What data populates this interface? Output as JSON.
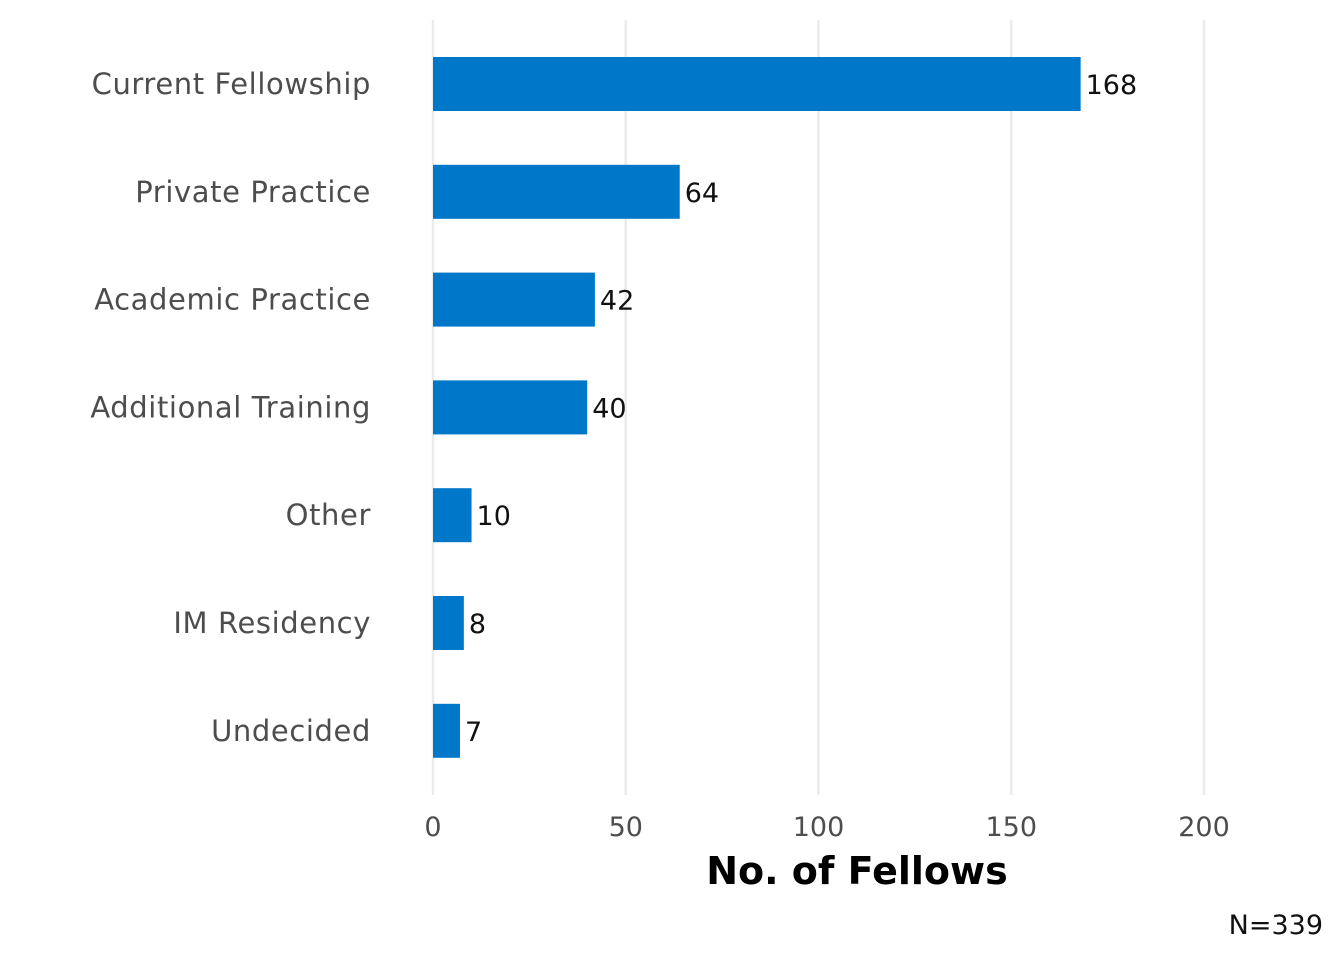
{
  "chart_data": {
    "type": "bar",
    "orientation": "horizontal",
    "categories": [
      "Current Fellowship",
      "Private Practice",
      "Academic Practice",
      "Additional Training",
      "Other",
      "IM Residency",
      "Undecided"
    ],
    "values": [
      168,
      64,
      42,
      40,
      10,
      8,
      7
    ],
    "xlabel": "No. of Fellows",
    "ylabel": "",
    "title": "",
    "xlim": [
      0,
      200
    ],
    "xticks": [
      0,
      50,
      100,
      150,
      200
    ],
    "grid": "vertical-major",
    "bar_color": "#0077C8",
    "grid_color": "#EBEBEB",
    "note": "N=339"
  }
}
